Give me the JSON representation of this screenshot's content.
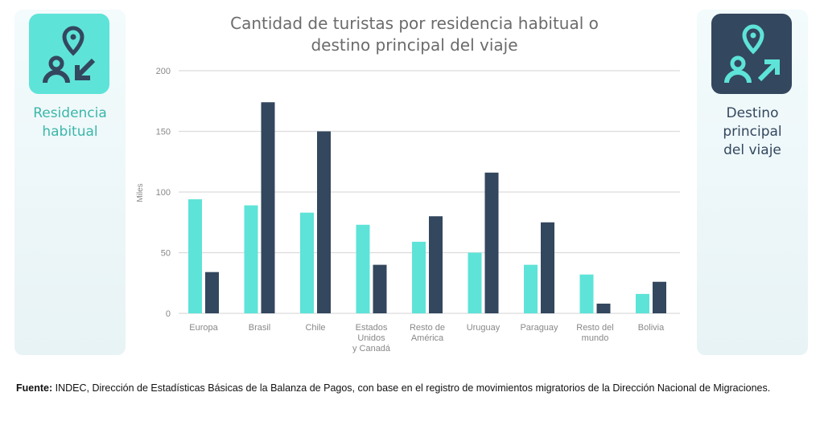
{
  "title_line1": "Cantidad de turistas por residencia habitual o",
  "title_line2": "destino principal del viaje",
  "left_panel": {
    "label_line1": "Residencia",
    "label_line2": "habitual",
    "icon": "person-location-arrow-in-icon",
    "color": "#5ee3d8"
  },
  "right_panel": {
    "label_line1": "Destino",
    "label_line2": "principal",
    "label_line3": "del viaje",
    "icon": "person-location-arrow-out-icon",
    "color": "#33475e"
  },
  "chart_data": {
    "type": "bar",
    "title": "Cantidad de turistas por residencia habitual o destino principal del viaje",
    "ylabel": "Miles",
    "xlabel": "",
    "ylim": [
      0,
      200
    ],
    "yticks": [
      0,
      50,
      100,
      150,
      200
    ],
    "grid": true,
    "categories": [
      [
        "Europa"
      ],
      [
        "Brasil"
      ],
      [
        "Chile"
      ],
      [
        "Estados",
        "Unidos",
        "y Canadá"
      ],
      [
        "Resto de",
        "América"
      ],
      [
        "Uruguay"
      ],
      [
        "Paraguay"
      ],
      [
        "Resto del",
        "mundo"
      ],
      [
        "Bolivia"
      ]
    ],
    "series": [
      {
        "name": "Residencia habitual",
        "color": "#5ee3d8",
        "values": [
          94,
          89,
          83,
          73,
          59,
          50,
          40,
          32,
          16
        ]
      },
      {
        "name": "Destino principal del viaje",
        "color": "#33475e",
        "values": [
          34,
          174,
          150,
          40,
          80,
          116,
          75,
          8,
          26
        ]
      }
    ]
  },
  "source": {
    "bold": "Fuente:",
    "text": " INDEC, Dirección de Estadísticas Básicas de la Balanza de Pagos, con base en el registro de movimientos migratorios de la Dirección Nacional de Migraciones."
  }
}
